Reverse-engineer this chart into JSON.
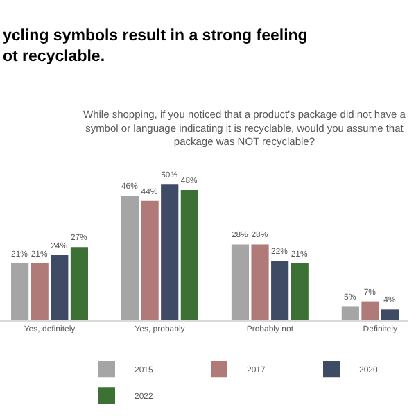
{
  "chart_data": {
    "type": "bar",
    "title": "ycling symbols result in a strong feeling\not recyclable.",
    "subtitle": "While shopping, if you noticed that a product's package did not have a\nsymbol or language indicating it is recyclable, would you assume that\npackage was NOT recyclable?",
    "categories": [
      "Yes, definitely",
      "Yes, probably",
      "Probably not",
      "Definitely"
    ],
    "series": [
      {
        "name": "2015",
        "color": "#a5a5a5",
        "values": [
          21,
          46,
          28,
          5
        ],
        "value_labels": [
          "21%",
          "46%",
          "28%",
          "5%"
        ]
      },
      {
        "name": "2017",
        "color": "#b07a78",
        "values": [
          21,
          44,
          28,
          7
        ],
        "value_labels": [
          "21%",
          "44%",
          "28%",
          "7%"
        ]
      },
      {
        "name": "2020",
        "color": "#3f4a64",
        "values": [
          24,
          50,
          22,
          4
        ],
        "value_labels": [
          "24%",
          "50%",
          "22%",
          "4%"
        ]
      },
      {
        "name": "2022",
        "color": "#3d7034",
        "values": [
          27,
          48,
          21,
          null
        ],
        "value_labels": [
          "27%",
          "48%",
          "21%",
          null
        ]
      }
    ],
    "legend": "bottom"
  }
}
